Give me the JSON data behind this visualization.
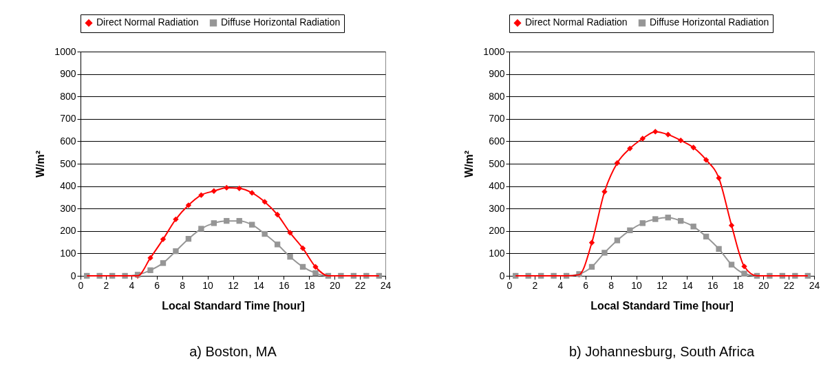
{
  "chart_data": [
    {
      "type": "line",
      "title": "a) Boston, MA",
      "xlabel": "Local Standard Time [hour]",
      "ylabel": "W/m²",
      "x": [
        0.5,
        1.5,
        2.5,
        3.5,
        4.5,
        5.5,
        6.5,
        7.5,
        8.5,
        9.5,
        10.5,
        11.5,
        12.5,
        13.5,
        14.5,
        15.5,
        16.5,
        17.5,
        18.5,
        19.5,
        20.5,
        21.5,
        22.5,
        23.5
      ],
      "series": [
        {
          "name": "Direct Normal Radiation",
          "color": "#ff0000",
          "marker": "diamond",
          "values": [
            0,
            0,
            0,
            0,
            0,
            80,
            163,
            252,
            315,
            360,
            378,
            393,
            390,
            370,
            330,
            273,
            192,
            123,
            40,
            0,
            0,
            0,
            0,
            0
          ]
        },
        {
          "name": "Diffuse Horizontal Radiation",
          "color": "#969696",
          "marker": "square",
          "values": [
            0,
            0,
            0,
            0,
            5,
            25,
            57,
            110,
            165,
            210,
            235,
            245,
            245,
            228,
            187,
            140,
            85,
            40,
            12,
            0,
            0,
            0,
            0,
            0
          ]
        }
      ],
      "xlim": [
        0,
        24
      ],
      "xticks": [
        0,
        2,
        4,
        6,
        8,
        10,
        12,
        14,
        16,
        18,
        20,
        22,
        24
      ],
      "ylim": [
        0,
        1000
      ],
      "yticks": [
        0,
        100,
        200,
        300,
        400,
        500,
        600,
        700,
        800,
        900,
        {
          "value": 1000,
          "label": "1000"
        }
      ],
      "grid": "y",
      "legend": "top",
      "line_style": "solid"
    },
    {
      "type": "line",
      "title": "b) Johannesburg, South Africa",
      "xlabel": "Local Standard Time [hour]",
      "ylabel": "W/m²",
      "x": [
        0.5,
        1.5,
        2.5,
        3.5,
        4.5,
        5.5,
        6.5,
        7.5,
        8.5,
        9.5,
        10.5,
        11.5,
        12.5,
        13.5,
        14.5,
        15.5,
        16.5,
        17.5,
        18.5,
        19.5,
        20.5,
        21.5,
        22.5,
        23.5
      ],
      "series": [
        {
          "name": "Direct Normal Radiation",
          "color": "#ff0000",
          "marker": "diamond",
          "values": [
            0,
            0,
            0,
            0,
            0,
            5,
            148,
            375,
            503,
            568,
            612,
            643,
            630,
            604,
            572,
            517,
            436,
            225,
            42,
            0,
            0,
            0,
            0,
            0
          ]
        },
        {
          "name": "Diffuse Horizontal Radiation",
          "color": "#969696",
          "marker": "square",
          "values": [
            0,
            0,
            0,
            0,
            0,
            8,
            40,
            103,
            158,
            203,
            235,
            253,
            260,
            245,
            220,
            175,
            120,
            50,
            10,
            0,
            0,
            0,
            0,
            0
          ]
        }
      ],
      "xlim": [
        0,
        24
      ],
      "xticks": [
        0,
        2,
        4,
        6,
        8,
        10,
        12,
        14,
        16,
        18,
        20,
        22,
        24
      ],
      "ylim": [
        0,
        1000
      ],
      "yticks": [
        0,
        100,
        200,
        300,
        400,
        500,
        600,
        700,
        800,
        900,
        {
          "value": 1000,
          "label": "1000"
        }
      ],
      "grid": "y",
      "legend": "top",
      "line_style": "solid"
    }
  ]
}
